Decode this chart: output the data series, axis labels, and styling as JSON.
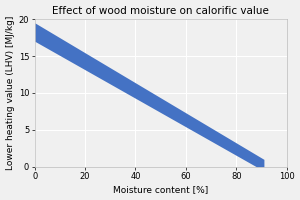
{
  "title": "Effect of wood moisture on calorific value",
  "xlabel": "Moisture content [%]",
  "ylabel": "Lower heating value (LHV) [MJ/kg]",
  "xlim": [
    0,
    100
  ],
  "ylim": [
    0,
    20
  ],
  "xticks": [
    0,
    20,
    40,
    60,
    80,
    100
  ],
  "yticks": [
    0,
    5,
    10,
    15,
    20
  ],
  "upper_line_x": [
    0,
    91
  ],
  "upper_line_y": [
    19.5,
    1.0
  ],
  "lower_line_x": [
    0,
    88
  ],
  "lower_line_y": [
    17.0,
    0.0
  ],
  "fill_color": "#4472C4",
  "fill_alpha": 1.0,
  "background_color": "#f0f0f0",
  "grid_color": "#ffffff",
  "title_fontsize": 7.5,
  "label_fontsize": 6.5,
  "tick_fontsize": 6
}
